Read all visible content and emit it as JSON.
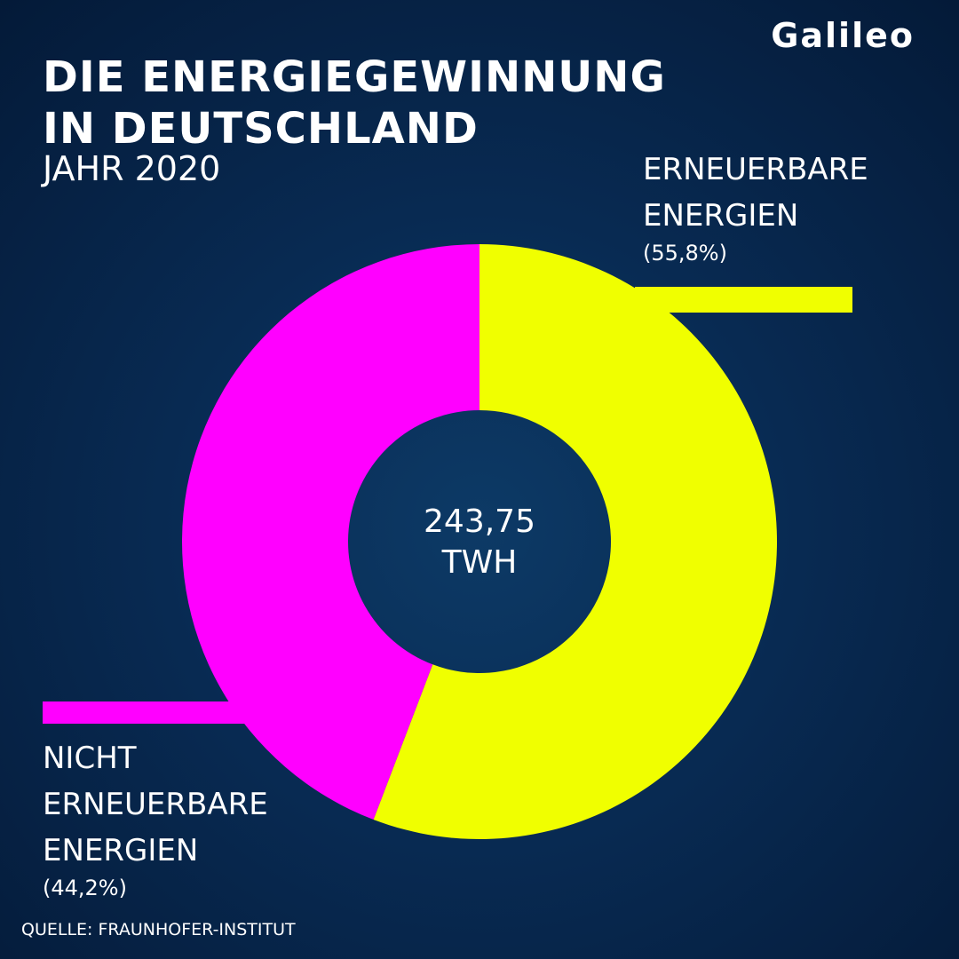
{
  "logo": "Galileo",
  "chart_data": {
    "type": "pie",
    "donut": true,
    "title": "DIE ENERGIEGEWINNUNG IN DEUTSCHLAND",
    "subtitle": "JAHR 2020",
    "center_text": "243,75 TWH",
    "categories": [
      "ERNEUERBARE ENERGIEN",
      "NICHT ERNEUERBARE ENERGIEN"
    ],
    "values": [
      55.8,
      44.2
    ],
    "value_labels": [
      "(55,8%)",
      "(44,2%)"
    ],
    "colors": [
      "#f0ff00",
      "#ff00ff"
    ]
  },
  "source": "QUELLE: FRAUNHOFER-INSTITUT"
}
